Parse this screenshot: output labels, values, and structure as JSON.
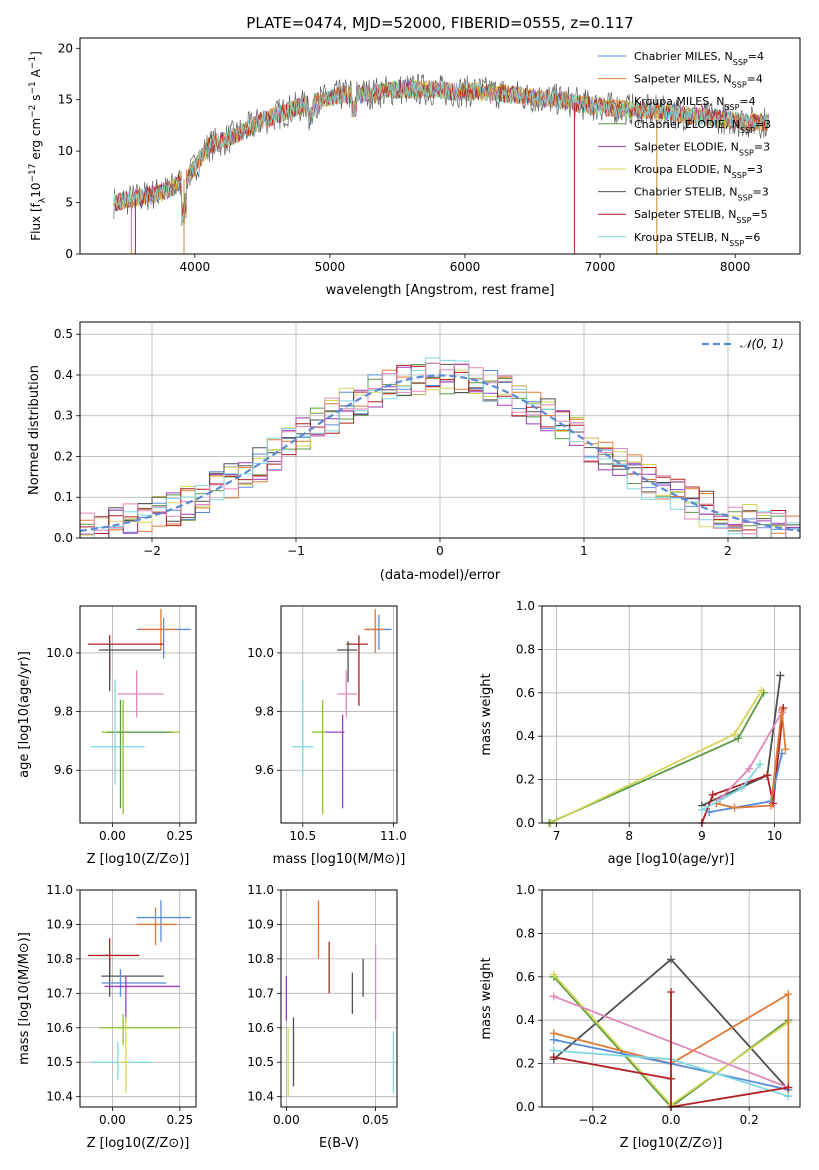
{
  "colors": {
    "chabrier_miles": "#5b8bd8",
    "salpeter_miles": "#e07b39",
    "kroupa_miles": "#c88a2c",
    "chabrier_elodie": "#5a9a45",
    "salpeter_elodie": "#9b3fc0",
    "kroupa_elodie": "#d4d65a",
    "chabrier_stelib": "#505050",
    "salpeter_stelib": "#b02020",
    "kroupa_stelib": "#7fd8e0",
    "pink": "#e088b8",
    "green2": "#90c030",
    "grid": "#b0b0b0"
  },
  "chart_data": [
    {
      "id": "spectrum",
      "type": "line",
      "title": "PLATE=0474, MJD=52000, FIBERID=0555, z=0.117",
      "xlabel": "wavelength [Angstrom, rest frame]",
      "ylabel_parts": [
        "Flux [f",
        "λ",
        "10",
        "−17",
        " erg cm",
        "−2",
        " s",
        "−1",
        " A",
        "−1",
        "]"
      ],
      "xlim": [
        3150,
        8480
      ],
      "ylim": [
        0,
        21
      ],
      "xticks": [
        4000,
        5000,
        6000,
        7000,
        8000
      ],
      "yticks": [
        0,
        5,
        10,
        15,
        20
      ],
      "grid": false,
      "legend_position": "right",
      "legend": [
        {
          "label": "Chabrier MILES, N",
          "sub": "SSP",
          "val": "=4",
          "color": "#5b8bd8"
        },
        {
          "label": "Salpeter MILES, N",
          "sub": "SSP",
          "val": "=4",
          "color": "#e07b39"
        },
        {
          "label": "Kroupa MILES, N",
          "sub": "SSP",
          "val": "=4",
          "color": "#c88a2c"
        },
        {
          "label": "Chabrier ELODIE, N",
          "sub": "SSP",
          "val": "=3",
          "color": "#5a9a45"
        },
        {
          "label": "Salpeter ELODIE, N",
          "sub": "SSP",
          "val": "=3",
          "color": "#9b3fc0"
        },
        {
          "label": "Kroupa ELODIE, N",
          "sub": "SSP",
          "val": "=3",
          "color": "#d4d65a"
        },
        {
          "label": "Chabrier STELIB, N",
          "sub": "SSP",
          "val": "=3",
          "color": "#505050"
        },
        {
          "label": "Salpeter STELIB, N",
          "sub": "SSP",
          "val": "=5",
          "color": "#b02020"
        },
        {
          "label": "Kroupa STELIB, N",
          "sub": "SSP",
          "val": "=6",
          "color": "#7fd8e0"
        }
      ],
      "continuum": [
        [
          3400,
          5.0
        ],
        [
          3600,
          5.5
        ],
        [
          3800,
          6.2
        ],
        [
          3950,
          7.5
        ],
        [
          4100,
          10.5
        ],
        [
          4300,
          11.5
        ],
        [
          4500,
          13.0
        ],
        [
          4700,
          14.0
        ],
        [
          4900,
          14.8
        ],
        [
          5100,
          15.5
        ],
        [
          5300,
          15.6
        ],
        [
          5500,
          16.0
        ],
        [
          5700,
          16.0
        ],
        [
          5900,
          15.8
        ],
        [
          6100,
          15.8
        ],
        [
          6300,
          15.6
        ],
        [
          6500,
          15.2
        ],
        [
          6700,
          15.0
        ],
        [
          6900,
          14.5
        ],
        [
          7100,
          14.2
        ],
        [
          7300,
          14.0
        ],
        [
          7500,
          13.8
        ],
        [
          7700,
          13.4
        ],
        [
          7900,
          13.2
        ],
        [
          8100,
          12.8
        ],
        [
          8250,
          12.8
        ]
      ],
      "dips": [
        [
          3530,
          0
        ],
        [
          3560,
          0
        ],
        [
          3920,
          0
        ],
        [
          6810,
          0
        ],
        [
          7420,
          0
        ]
      ]
    },
    {
      "id": "residuals",
      "type": "histogram",
      "xlabel": "(data-model)/error",
      "ylabel": "Normed distribution",
      "xlim": [
        -2.5,
        2.5
      ],
      "ylim": [
        0,
        0.53
      ],
      "xticks": [
        -2,
        -1,
        0,
        1,
        2
      ],
      "yticks": [
        0.0,
        0.1,
        0.2,
        0.3,
        0.4,
        0.5
      ],
      "grid": true,
      "legend_position": "top-right",
      "legend": [
        {
          "label": "𝒩(0, 1)",
          "color": "#5b8bd8",
          "style": "dashed"
        }
      ],
      "bin_width": 0.1
    },
    {
      "id": "age_vs_Z",
      "type": "errorbar",
      "xlabel": "Z [log10(Z/Z⊙)]",
      "ylabel": "age  [log10(age/yr)]",
      "xlim": [
        -0.12,
        0.31
      ],
      "ylim": [
        9.42,
        10.16
      ],
      "xticks": [
        0.0,
        0.25
      ],
      "yticks": [
        9.6,
        9.8,
        10.0
      ],
      "grid": true,
      "points": [
        {
          "x": 0.19,
          "y": 10.08,
          "xl": 0.09,
          "xh": 0.29,
          "yl": 9.98,
          "yh": 10.12,
          "color": "#5b8bd8"
        },
        {
          "x": 0.18,
          "y": 10.08,
          "xl": 0.1,
          "xh": 0.24,
          "yl": 10.01,
          "yh": 10.15,
          "color": "#e07b39"
        },
        {
          "x": -0.01,
          "y": 10.03,
          "xl": -0.09,
          "xh": 0.19,
          "yl": 9.91,
          "yh": 10.06,
          "color": "#b02020"
        },
        {
          "x": -0.01,
          "y": 10.01,
          "xl": -0.05,
          "xh": 0.18,
          "yl": 9.87,
          "yh": 10.04,
          "color": "#505050"
        },
        {
          "x": 0.09,
          "y": 9.86,
          "xl": 0.02,
          "xh": 0.19,
          "yl": 9.78,
          "yh": 9.94,
          "color": "#e088b8"
        },
        {
          "x": 0.04,
          "y": 9.73,
          "xl": -0.04,
          "xh": 0.25,
          "yl": 9.45,
          "yh": 9.84,
          "color": "#90c030"
        },
        {
          "x": 0.03,
          "y": 9.73,
          "xl": -0.02,
          "xh": 0.22,
          "yl": 9.47,
          "yh": 9.84,
          "color": "#5a9a45"
        },
        {
          "x": 0.01,
          "y": 9.68,
          "xl": -0.08,
          "xh": 0.12,
          "yl": 9.55,
          "yh": 9.91,
          "color": "#7fd8e0"
        }
      ]
    },
    {
      "id": "age_vs_mass",
      "type": "errorbar",
      "xlabel": "mass [log10(M/M⊙)]",
      "xlim": [
        10.38,
        11.02
      ],
      "ylim": [
        9.42,
        10.16
      ],
      "xticks": [
        10.5,
        11.0
      ],
      "xtick_labels": [
        "10.5",
        "11.0"
      ],
      "yticks": [
        9.6,
        9.8,
        10.0
      ],
      "grid": true,
      "points": [
        {
          "x": 10.92,
          "y": 10.08,
          "xl": 10.85,
          "xh": 10.99,
          "yl": 10.01,
          "yh": 10.13,
          "color": "#5b8bd8"
        },
        {
          "x": 10.9,
          "y": 10.08,
          "xl": 10.84,
          "xh": 10.95,
          "yl": 10.0,
          "yh": 10.15,
          "color": "#e07b39"
        },
        {
          "x": 10.81,
          "y": 10.03,
          "xl": 10.74,
          "xh": 10.86,
          "yl": 9.82,
          "yh": 10.06,
          "color": "#b02020"
        },
        {
          "x": 10.75,
          "y": 10.01,
          "xl": 10.69,
          "xh": 10.8,
          "yl": 9.9,
          "yh": 10.04,
          "color": "#505050"
        },
        {
          "x": 10.74,
          "y": 9.86,
          "xl": 10.69,
          "xh": 10.8,
          "yl": 9.78,
          "yh": 9.94,
          "color": "#e088b8"
        },
        {
          "x": 10.72,
          "y": 9.73,
          "xl": 10.62,
          "xh": 10.73,
          "yl": 9.47,
          "yh": 9.79,
          "color": "#9b3fc0"
        },
        {
          "x": 10.61,
          "y": 9.73,
          "xl": 10.55,
          "xh": 10.63,
          "yl": 9.45,
          "yh": 9.84,
          "color": "#90c030"
        },
        {
          "x": 10.5,
          "y": 9.68,
          "xl": 10.44,
          "xh": 10.56,
          "yl": 9.58,
          "yh": 9.91,
          "color": "#7fd8e0"
        }
      ]
    },
    {
      "id": "massweight_vs_age",
      "type": "line",
      "xlabel": "age  [log10(age/yr)]",
      "ylabel": "mass weight",
      "xlim": [
        6.8,
        10.35
      ],
      "ylim": [
        0,
        1.0
      ],
      "xticks": [
        7,
        8,
        9,
        10
      ],
      "yticks": [
        0.0,
        0.2,
        0.4,
        0.6,
        0.8,
        1.0
      ],
      "grid": true,
      "series": [
        {
          "color": "#5a9a45",
          "pts": [
            [
              6.9,
              0.0
            ],
            [
              9.5,
              0.39
            ],
            [
              9.85,
              0.6
            ]
          ]
        },
        {
          "color": "#d4d65a",
          "pts": [
            [
              6.92,
              0.0
            ],
            [
              9.45,
              0.41
            ],
            [
              9.82,
              0.61
            ]
          ]
        },
        {
          "color": "#505050",
          "pts": [
            [
              9.0,
              0.08
            ],
            [
              9.9,
              0.22
            ],
            [
              10.08,
              0.68
            ]
          ]
        },
        {
          "color": "#b02020",
          "pts": [
            [
              9.0,
              0.0
            ],
            [
              9.15,
              0.13
            ],
            [
              9.9,
              0.22
            ],
            [
              9.98,
              0.09
            ],
            [
              10.12,
              0.53
            ]
          ]
        },
        {
          "color": "#e088b8",
          "pts": [
            [
              9.25,
              0.11
            ],
            [
              9.65,
              0.25
            ],
            [
              10.1,
              0.51
            ]
          ]
        },
        {
          "color": "#5b8bd8",
          "pts": [
            [
              9.1,
              0.05
            ],
            [
              9.95,
              0.1
            ],
            [
              10.1,
              0.32
            ]
          ]
        },
        {
          "color": "#e07b39",
          "pts": [
            [
              9.2,
              0.09
            ],
            [
              9.45,
              0.07
            ],
            [
              9.95,
              0.08
            ],
            [
              10.1,
              0.52
            ],
            [
              10.15,
              0.34
            ]
          ]
        },
        {
          "color": "#7fd8e0",
          "pts": [
            [
              9.0,
              0.06
            ],
            [
              9.55,
              0.16
            ],
            [
              9.8,
              0.27
            ]
          ]
        }
      ]
    },
    {
      "id": "mass_vs_Z",
      "type": "errorbar",
      "xlabel": "Z [log10(Z/Z⊙)]",
      "ylabel": "mass [log10(M/M⊙)]",
      "xlim": [
        -0.12,
        0.31
      ],
      "ylim": [
        10.37,
        11.0
      ],
      "xticks": [
        0.0,
        0.25
      ],
      "yticks": [
        10.4,
        10.5,
        10.6,
        10.7,
        10.8,
        10.9,
        11.0
      ],
      "grid": true,
      "points": [
        {
          "x": 0.18,
          "y": 10.92,
          "xl": 0.09,
          "xh": 0.29,
          "yl": 10.85,
          "yh": 10.97,
          "color": "#5b8bd8"
        },
        {
          "x": 0.16,
          "y": 10.9,
          "xl": 0.09,
          "xh": 0.24,
          "yl": 10.84,
          "yh": 10.95,
          "color": "#e07b39"
        },
        {
          "x": -0.01,
          "y": 10.81,
          "xl": -0.09,
          "xh": 0.1,
          "yl": 10.75,
          "yh": 10.86,
          "color": "#b02020"
        },
        {
          "x": -0.01,
          "y": 10.75,
          "xl": -0.04,
          "xh": 0.19,
          "yl": 10.69,
          "yh": 10.8,
          "color": "#505050"
        },
        {
          "x": 0.03,
          "y": 10.73,
          "xl": -0.04,
          "xh": 0.2,
          "yl": 10.69,
          "yh": 10.77,
          "color": "#5b8bd8"
        },
        {
          "x": 0.05,
          "y": 10.72,
          "xl": -0.03,
          "xh": 0.25,
          "yl": 10.62,
          "yh": 10.75,
          "color": "#9b3fc0"
        },
        {
          "x": 0.04,
          "y": 10.6,
          "xl": -0.05,
          "xh": 0.25,
          "yl": 10.55,
          "yh": 10.64,
          "color": "#90c030"
        },
        {
          "x": 0.02,
          "y": 10.5,
          "xl": -0.08,
          "xh": 0.15,
          "yl": 10.45,
          "yh": 10.56,
          "color": "#7fd8e0"
        },
        {
          "x": 0.05,
          "y": 10.5,
          "xl": 0.02,
          "xh": 0.06,
          "yl": 10.41,
          "yh": 10.63,
          "color": "#d4d65a"
        }
      ]
    },
    {
      "id": "mass_vs_EBV",
      "type": "errorbar",
      "xlabel": "E(B-V)",
      "xlim": [
        -0.003,
        0.062
      ],
      "ylim": [
        10.37,
        11.0
      ],
      "xticks": [
        0.0,
        0.05
      ],
      "xtick_labels": [
        "0.00",
        "0.05"
      ],
      "yticks": [
        10.4,
        10.5,
        10.6,
        10.7,
        10.8,
        10.9,
        11.0
      ],
      "grid": true,
      "points": [
        {
          "x": 0.018,
          "y": 10.9,
          "yl": 10.8,
          "yh": 10.97,
          "color": "#e07b39"
        },
        {
          "x": 0.043,
          "y": 10.75,
          "yl": 10.69,
          "yh": 10.8,
          "color": "#505050"
        },
        {
          "x": 0.024,
          "y": 10.75,
          "yl": 10.7,
          "yh": 10.85,
          "color": "#b02020"
        },
        {
          "x": 0.0,
          "y": 10.68,
          "yl": 10.62,
          "yh": 10.75,
          "color": "#9b3fc0"
        },
        {
          "x": 0.037,
          "y": 10.68,
          "yl": 10.64,
          "yh": 10.76,
          "color": "#505050"
        },
        {
          "x": 0.05,
          "y": 10.72,
          "yl": 10.62,
          "yh": 10.84,
          "color": "#e088b8"
        },
        {
          "x": 0.004,
          "y": 10.55,
          "yl": 10.43,
          "yh": 10.63,
          "color": "#505050"
        },
        {
          "x": 0.001,
          "y": 10.52,
          "yl": 10.4,
          "yh": 10.6,
          "color": "#d4d65a"
        },
        {
          "x": 0.06,
          "y": 10.5,
          "yl": 10.41,
          "yh": 10.59,
          "color": "#7fd8e0"
        }
      ]
    },
    {
      "id": "massweight_vs_Z",
      "type": "line",
      "xlabel": "Z [log10(Z/Z⊙)]",
      "ylabel": "mass weight",
      "xlim": [
        -0.33,
        0.33
      ],
      "ylim": [
        0,
        1.0
      ],
      "xticks": [
        -0.2,
        0.0,
        0.2
      ],
      "xtick_labels": [
        "−0.2",
        "0.0",
        "0.2"
      ],
      "yticks": [
        0.0,
        0.2,
        0.4,
        0.6,
        0.8,
        1.0
      ],
      "grid": true,
      "series": [
        {
          "color": "#505050",
          "pts": [
            [
              -0.3,
              0.22
            ],
            [
              0.0,
              0.68
            ],
            [
              0.3,
              0.08
            ]
          ]
        },
        {
          "color": "#5a9a45",
          "pts": [
            [
              -0.3,
              0.6
            ],
            [
              0.0,
              0.0
            ],
            [
              0.3,
              0.4
            ]
          ]
        },
        {
          "color": "#d4d65a",
          "pts": [
            [
              -0.3,
              0.61
            ],
            [
              0.0,
              0.01
            ],
            [
              0.3,
              0.39
            ]
          ]
        },
        {
          "color": "#e088b8",
          "pts": [
            [
              -0.3,
              0.51
            ],
            [
              0.3,
              0.09
            ]
          ]
        },
        {
          "color": "#e07b39",
          "pts": [
            [
              -0.3,
              0.34
            ],
            [
              0.0,
              0.2
            ],
            [
              0.3,
              0.52
            ],
            [
              0.3,
              0.05
            ]
          ]
        },
        {
          "color": "#5b8bd8",
          "pts": [
            [
              -0.3,
              0.31
            ],
            [
              0.0,
              0.2
            ],
            [
              0.3,
              0.08
            ]
          ]
        },
        {
          "color": "#7fd8e0",
          "pts": [
            [
              -0.3,
              0.26
            ],
            [
              0.0,
              0.22
            ],
            [
              0.3,
              0.05
            ]
          ]
        },
        {
          "color": "#b02020",
          "pts": [
            [
              -0.3,
              0.23
            ],
            [
              0.0,
              0.13
            ],
            [
              0.0,
              0.53
            ],
            [
              0.0,
              0.0
            ],
            [
              0.3,
              0.09
            ]
          ]
        }
      ]
    }
  ]
}
